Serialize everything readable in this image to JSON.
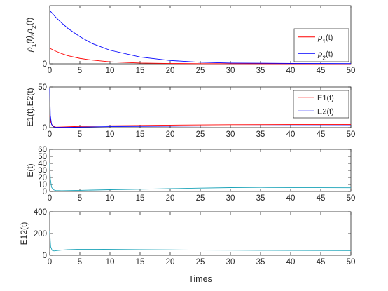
{
  "chart_data": [
    {
      "type": "line",
      "ylabel": "ρ1(t),ρ2(t)",
      "xlim": [
        0,
        50
      ],
      "ylim": [
        0,
        3
      ],
      "xticks": [
        "0",
        "5",
        "10",
        "15",
        "20",
        "25",
        "30",
        "35",
        "40",
        "45",
        "50"
      ],
      "yticks": [
        "0"
      ],
      "legend_position": "right",
      "series": [
        {
          "name": "ρ1(t)",
          "color": "#ff0000",
          "x": [
            0,
            1,
            2,
            3,
            5,
            7,
            10,
            15,
            20,
            25,
            30,
            40,
            50
          ],
          "y": [
            0.8,
            0.65,
            0.52,
            0.42,
            0.28,
            0.19,
            0.1,
            0.04,
            0.015,
            0.008,
            0.005,
            0.003,
            0.002
          ]
        },
        {
          "name": "ρ2(t)",
          "color": "#0000ff",
          "x": [
            0,
            1,
            2,
            3,
            5,
            7,
            10,
            15,
            20,
            25,
            30,
            40,
            50
          ],
          "y": [
            2.75,
            2.4,
            2.1,
            1.83,
            1.4,
            1.05,
            0.7,
            0.35,
            0.17,
            0.08,
            0.04,
            0.02,
            0.01
          ]
        }
      ]
    },
    {
      "type": "line",
      "ylabel": "E1(t),E2(t)",
      "xlim": [
        0,
        50
      ],
      "ylim": [
        0,
        50
      ],
      "xticks": [
        "0",
        "5",
        "10",
        "15",
        "20",
        "25",
        "30",
        "35",
        "40",
        "45",
        "50"
      ],
      "yticks": [
        "0",
        "50"
      ],
      "legend_position": "top-right",
      "series": [
        {
          "name": "E1(t)",
          "color": "#ff0000",
          "x": [
            0,
            0.2,
            0.5,
            1,
            2,
            5,
            10,
            20,
            30,
            40,
            50
          ],
          "y": [
            15,
            6,
            2,
            0.6,
            0.8,
            1.5,
            2.3,
            3.1,
            3.6,
            3.8,
            3.9
          ]
        },
        {
          "name": "E2(t)",
          "color": "#0000ff",
          "x": [
            0,
            0.1,
            0.3,
            0.6,
            1,
            2,
            5,
            10,
            20,
            30,
            40,
            50
          ],
          "y": [
            48,
            15,
            4,
            1,
            0.5,
            0.3,
            0.6,
            1.2,
            1.8,
            2.2,
            2.4,
            2.5
          ]
        }
      ]
    },
    {
      "type": "line",
      "ylabel": "E(t)",
      "xlim": [
        0,
        50
      ],
      "ylim": [
        0,
        60
      ],
      "xticks": [
        "0",
        "5",
        "10",
        "15",
        "20",
        "25",
        "30",
        "35",
        "40",
        "45",
        "50"
      ],
      "yticks": [
        "0",
        "10",
        "20",
        "30",
        "40",
        "50",
        "60"
      ],
      "series": [
        {
          "color": "#1aa3b8",
          "x": [
            0,
            0.1,
            0.3,
            0.6,
            1,
            2,
            5,
            10,
            15,
            20,
            25,
            30,
            35,
            40,
            45,
            50
          ],
          "y": [
            40,
            18,
            6,
            2.5,
            1.3,
            1.1,
            1.6,
            2.5,
            3.2,
            4.0,
            4.8,
            5.5,
            5.8,
            5.6,
            5.4,
            5.3
          ]
        }
      ]
    },
    {
      "type": "line",
      "ylabel": "E12(t)",
      "xlabel": "Times",
      "xlim": [
        0,
        50
      ],
      "ylim": [
        0,
        400
      ],
      "xticks": [
        "0",
        "5",
        "10",
        "15",
        "20",
        "25",
        "30",
        "35",
        "40",
        "45",
        "50"
      ],
      "yticks": [
        "0",
        "200",
        "400"
      ],
      "series": [
        {
          "color": "#1aa3b8",
          "x": [
            0,
            0.15,
            0.4,
            0.7,
            1,
            2,
            3,
            5,
            8,
            10,
            15,
            20,
            25,
            30,
            35,
            40,
            45,
            50
          ],
          "y": [
            220,
            80,
            45,
            40,
            42,
            48,
            52,
            55,
            55,
            54,
            52,
            50,
            48,
            47,
            46,
            45,
            44,
            43
          ]
        }
      ]
    }
  ]
}
